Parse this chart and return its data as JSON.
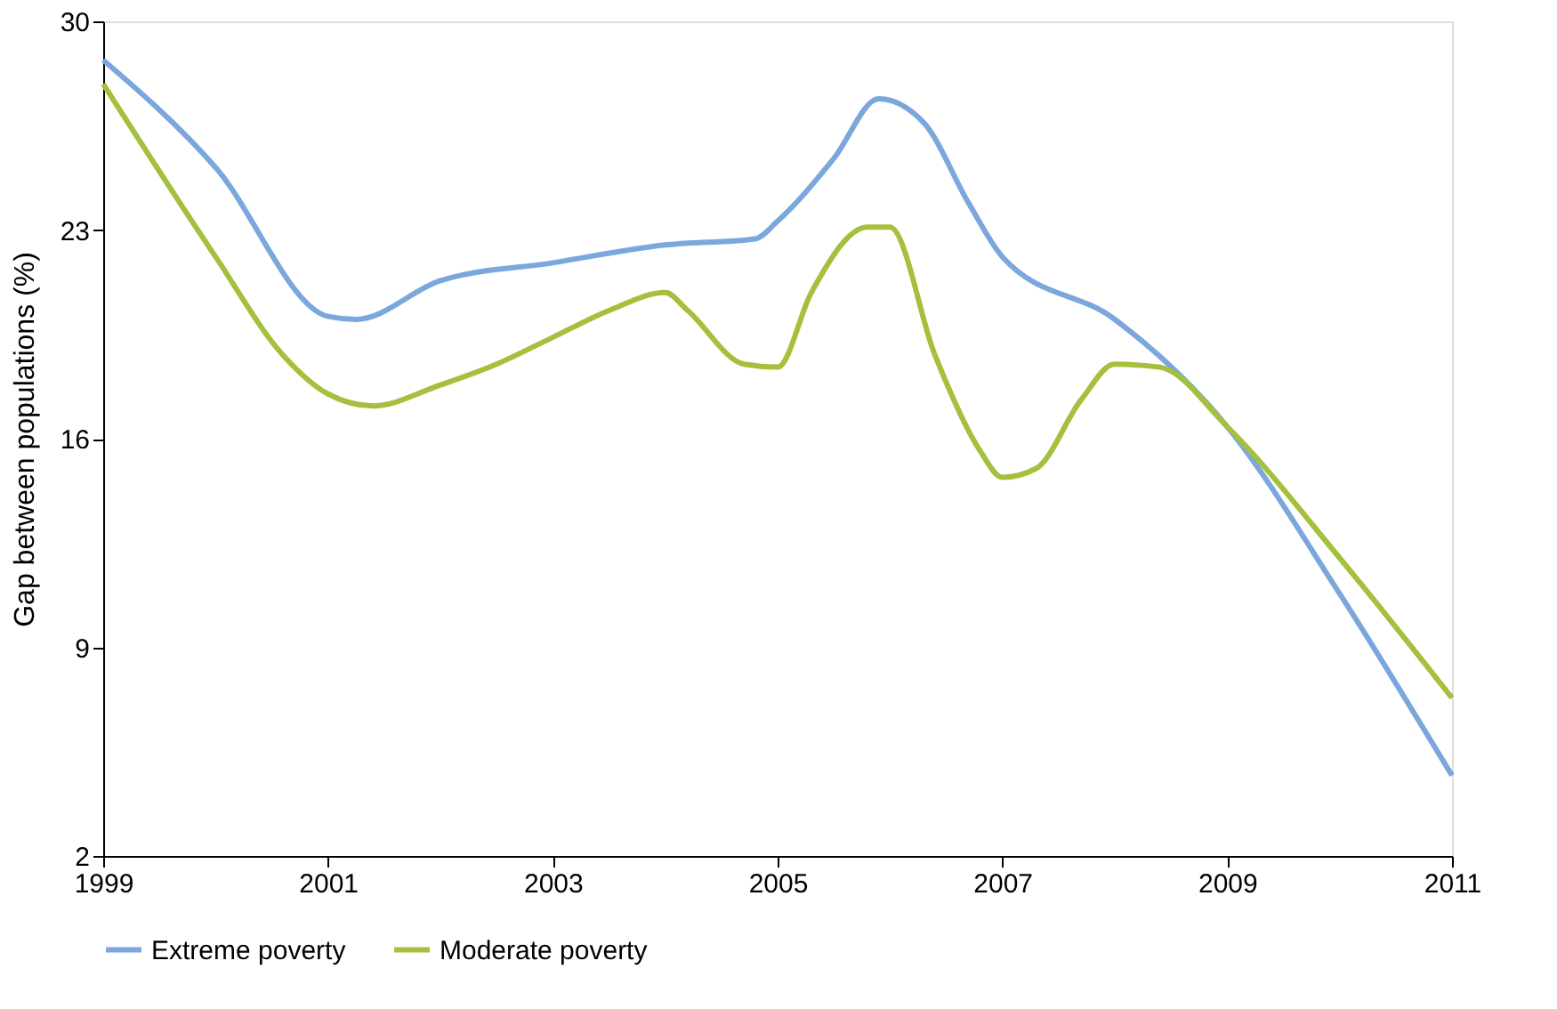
{
  "chart_data": {
    "type": "line",
    "ylabel": "Gap between populations (%)",
    "xlim": [
      1999,
      2011
    ],
    "xticks": [
      1999,
      2001,
      2003,
      2005,
      2007,
      2009,
      2011
    ],
    "ylim": [
      2,
      30
    ],
    "yticks": [
      2,
      9,
      16,
      23,
      30
    ],
    "grid": false,
    "legend": "bottom",
    "marker": "none",
    "line_style": "solid",
    "series": [
      {
        "name": "Extreme poverty",
        "color": "#7ba7dc",
        "x": [
          1999,
          2000,
          2001,
          2001.25,
          2002,
          2003,
          2004,
          2004.8,
          2005,
          2005.5,
          2005.9,
          2006.3,
          2006.7,
          2007,
          2008,
          2009,
          2010,
          2011
        ],
        "values": [
          28.7,
          25.1,
          20.1,
          20.0,
          21.3,
          21.9,
          22.5,
          22.7,
          23.3,
          25.4,
          27.4,
          26.6,
          23.9,
          22.1,
          20.0,
          16.4,
          10.8,
          4.7
        ]
      },
      {
        "name": "Moderate poverty",
        "color": "#a4c03c",
        "x": [
          1999,
          2000,
          2000.6,
          2001,
          2001.4,
          2002,
          2002.5,
          2003,
          2003.5,
          2004,
          2004.2,
          2004.7,
          2005,
          2005.3,
          2005.8,
          2006,
          2006.4,
          2006.8,
          2007,
          2007.3,
          2007.7,
          2008,
          2008.4,
          2009,
          2010,
          2011
        ],
        "values": [
          27.9,
          22.1,
          18.8,
          17.5,
          17.1,
          17.8,
          18.5,
          19.4,
          20.3,
          20.9,
          20.3,
          18.5,
          18.4,
          20.9,
          23.1,
          23.1,
          18.8,
          15.6,
          14.7,
          15.0,
          17.3,
          18.5,
          18.4,
          16.4,
          12.0,
          7.3
        ]
      }
    ]
  }
}
